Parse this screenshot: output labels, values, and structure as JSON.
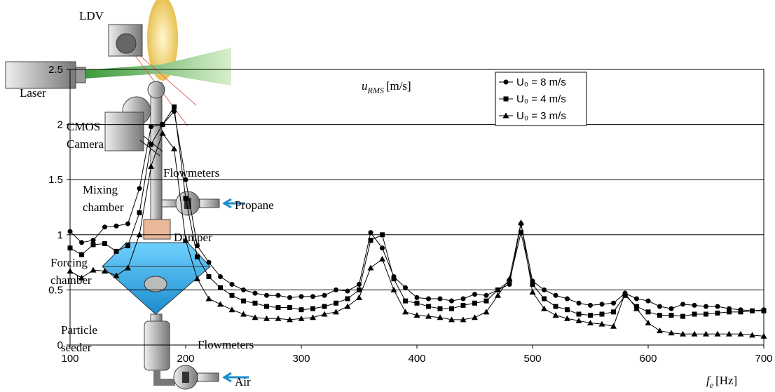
{
  "diagram": {
    "labels": [
      {
        "lines": [
          "LDV"
        ]
      },
      {
        "lines": [
          "Laser"
        ]
      },
      {
        "lines": [
          "CMOS",
          "Camera"
        ]
      },
      {
        "lines": [
          "Flowmeters"
        ]
      },
      {
        "lines": [
          "Mixing",
          "chamber"
        ]
      },
      {
        "lines": [
          "Propane"
        ]
      },
      {
        "lines": [
          "Damper"
        ]
      },
      {
        "lines": [
          "Forcing",
          "chamber"
        ]
      },
      {
        "lines": [
          "Particle",
          "seeder"
        ]
      },
      {
        "lines": [
          "Flowmeters"
        ]
      },
      {
        "lines": [
          "Air"
        ]
      }
    ]
  },
  "chart_data": {
    "type": "line",
    "ylabel": {
      "symbol": "u",
      "subscript": "RMS",
      "unit": "[m/s]"
    },
    "xlabel": {
      "symbol": "f",
      "subscript": "e",
      "unit": "[Hz]"
    },
    "x": [
      100,
      110,
      120,
      130,
      140,
      150,
      160,
      170,
      180,
      190,
      200,
      210,
      220,
      230,
      240,
      250,
      260,
      270,
      280,
      290,
      300,
      310,
      320,
      330,
      340,
      350,
      360,
      370,
      380,
      390,
      400,
      410,
      420,
      430,
      440,
      450,
      460,
      470,
      480,
      490,
      500,
      510,
      520,
      530,
      540,
      550,
      560,
      570,
      580,
      590,
      600,
      610,
      620,
      630,
      640,
      650,
      660,
      670,
      680,
      690,
      700
    ],
    "series": [
      {
        "name": "U₀ = 8 m/s",
        "marker": "circle",
        "color": "#000000",
        "values": [
          1.03,
          0.93,
          0.95,
          1.07,
          1.08,
          1.1,
          1.42,
          1.98,
          2.0,
          2.12,
          1.5,
          0.9,
          0.75,
          0.62,
          0.55,
          0.5,
          0.47,
          0.45,
          0.45,
          0.43,
          0.44,
          0.44,
          0.45,
          0.5,
          0.49,
          0.55,
          1.02,
          0.88,
          0.62,
          0.52,
          0.43,
          0.42,
          0.42,
          0.4,
          0.42,
          0.46,
          0.45,
          0.5,
          0.55,
          1.1,
          0.58,
          0.5,
          0.45,
          0.42,
          0.38,
          0.36,
          0.37,
          0.38,
          0.47,
          0.42,
          0.4,
          0.35,
          0.33,
          0.37,
          0.36,
          0.35,
          0.35,
          0.33,
          0.32,
          0.31,
          0.32
        ]
      },
      {
        "name": "U₀ = 4 m/s",
        "marker": "square",
        "color": "#000000",
        "values": [
          0.88,
          0.82,
          0.91,
          0.92,
          0.85,
          0.9,
          1.2,
          1.82,
          2.0,
          2.16,
          1.33,
          0.8,
          0.62,
          0.52,
          0.45,
          0.4,
          0.38,
          0.35,
          0.34,
          0.34,
          0.32,
          0.33,
          0.35,
          0.38,
          0.42,
          0.5,
          0.95,
          1.0,
          0.6,
          0.4,
          0.38,
          0.35,
          0.33,
          0.33,
          0.36,
          0.38,
          0.4,
          0.5,
          0.58,
          1.02,
          0.55,
          0.42,
          0.35,
          0.32,
          0.28,
          0.27,
          0.28,
          0.3,
          0.45,
          0.35,
          0.3,
          0.27,
          0.27,
          0.26,
          0.28,
          0.28,
          0.29,
          0.3,
          0.3,
          0.31,
          0.31
        ]
      },
      {
        "name": "U₀ = 3 m/s",
        "marker": "triangle",
        "color": "#000000",
        "values": [
          0.67,
          0.61,
          0.68,
          0.67,
          0.63,
          0.7,
          1.0,
          1.62,
          1.92,
          1.78,
          0.95,
          0.6,
          0.42,
          0.37,
          0.32,
          0.28,
          0.25,
          0.24,
          0.24,
          0.23,
          0.24,
          0.25,
          0.28,
          0.3,
          0.35,
          0.43,
          0.7,
          0.78,
          0.5,
          0.3,
          0.27,
          0.26,
          0.25,
          0.23,
          0.23,
          0.25,
          0.3,
          0.45,
          0.6,
          1.11,
          0.48,
          0.33,
          0.27,
          0.24,
          0.22,
          0.2,
          0.19,
          0.17,
          0.47,
          0.33,
          0.2,
          0.13,
          0.11,
          0.1,
          0.1,
          0.1,
          0.1,
          0.1,
          0.1,
          0.09,
          0.08
        ]
      }
    ],
    "xlim": [
      100,
      700
    ],
    "xticks": [
      100,
      200,
      300,
      400,
      500,
      600,
      700
    ],
    "ylim": [
      0,
      2.5
    ],
    "yticks": [
      0,
      0.5,
      1,
      1.5,
      2,
      2.5
    ],
    "grid": true,
    "legend": "top-left"
  }
}
